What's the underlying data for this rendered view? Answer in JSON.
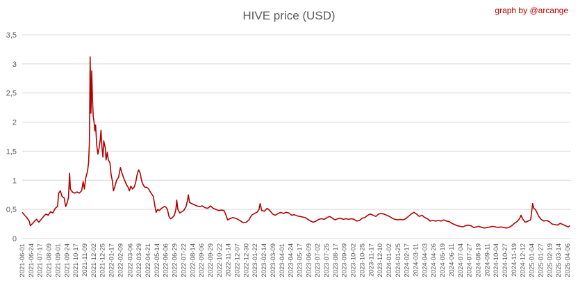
{
  "chart_data": {
    "type": "line",
    "title": "HIVE price (USD)",
    "credit": "graph by @arcange",
    "credit_color": "#c00000",
    "line_color": "#b00000",
    "xlabel": "",
    "ylabel": "",
    "grid": true,
    "legend": "none",
    "ylim": [
      0,
      3.5
    ],
    "yticks": [
      0,
      0.5,
      1,
      1.5,
      2,
      2.5,
      3,
      3.5
    ],
    "ytick_labels": [
      "0",
      "0,5",
      "1",
      "1,5",
      "2",
      "2,5",
      "3",
      "3,5"
    ],
    "xlim": [
      "2021-06-01",
      "2025-04-15"
    ],
    "xtick_labels": [
      "2021-06-01",
      "2021-06-24",
      "2021-07-17",
      "2021-08-09",
      "2021-09-01",
      "2021-09-24",
      "2021-10-17",
      "2021-11-09",
      "2021-12-02",
      "2021-12-25",
      "2022-01-17",
      "2022-02-09",
      "2022-03-06",
      "2022-03-29",
      "2022-04-21",
      "2022-05-14",
      "2022-06-06",
      "2022-06-29",
      "2022-07-22",
      "2022-08-14",
      "2022-09-06",
      "2022-09-29",
      "2022-10-22",
      "2022-11-14",
      "2022-12-07",
      "2022-12-30",
      "2023-01-22",
      "2023-02-14",
      "2023-03-09",
      "2023-04-01",
      "2023-04-24",
      "2023-05-17",
      "2023-06-09",
      "2023-07-02",
      "2023-07-25",
      "2023-08-17",
      "2023-09-09",
      "2023-10-02",
      "2023-10-25",
      "2023-11-17",
      "2023-12-10",
      "2024-01-02",
      "2024-01-25",
      "2024-02-17",
      "2024-03-11",
      "2024-04-03",
      "2024-04-26",
      "2024-05-19",
      "2024-06-11",
      "2024-07-04",
      "2024-07-27",
      "2024-08-19",
      "2024-09-11",
      "2024-10-04",
      "2024-10-27",
      "2024-11-19",
      "2024-12-12",
      "2025-01-04",
      "2025-01-27",
      "2025-02-19",
      "2025-03-14",
      "2025-04-06"
    ],
    "series": [
      {
        "points": [
          [
            "2021-06-01",
            0.45
          ],
          [
            "2021-06-07",
            0.4
          ],
          [
            "2021-06-13",
            0.36
          ],
          [
            "2021-06-19",
            0.3
          ],
          [
            "2021-06-22",
            0.22
          ],
          [
            "2021-06-28",
            0.26
          ],
          [
            "2021-07-03",
            0.3
          ],
          [
            "2021-07-08",
            0.33
          ],
          [
            "2021-07-14",
            0.28
          ],
          [
            "2021-07-20",
            0.33
          ],
          [
            "2021-07-26",
            0.38
          ],
          [
            "2021-08-01",
            0.42
          ],
          [
            "2021-08-07",
            0.4
          ],
          [
            "2021-08-13",
            0.46
          ],
          [
            "2021-08-19",
            0.44
          ],
          [
            "2021-08-25",
            0.52
          ],
          [
            "2021-08-31",
            0.55
          ],
          [
            "2021-09-03",
            0.78
          ],
          [
            "2021-09-07",
            0.82
          ],
          [
            "2021-09-12",
            0.72
          ],
          [
            "2021-09-17",
            0.7
          ],
          [
            "2021-09-21",
            0.55
          ],
          [
            "2021-09-25",
            0.62
          ],
          [
            "2021-09-28",
            0.7
          ],
          [
            "2021-10-01",
            1.12
          ],
          [
            "2021-10-03",
            0.85
          ],
          [
            "2021-10-08",
            0.8
          ],
          [
            "2021-10-14",
            0.78
          ],
          [
            "2021-10-20",
            0.8
          ],
          [
            "2021-10-26",
            0.78
          ],
          [
            "2021-11-01",
            0.82
          ],
          [
            "2021-11-05",
            0.98
          ],
          [
            "2021-11-08",
            0.85
          ],
          [
            "2021-11-12",
            1.05
          ],
          [
            "2021-11-16",
            1.15
          ],
          [
            "2021-11-19",
            1.3
          ],
          [
            "2021-11-21",
            1.65
          ],
          [
            "2021-11-22",
            2.3
          ],
          [
            "2021-11-23",
            3.12
          ],
          [
            "2021-11-24",
            2.6
          ],
          [
            "2021-11-25",
            2.15
          ],
          [
            "2021-11-26",
            2.4
          ],
          [
            "2021-11-27",
            2.88
          ],
          [
            "2021-11-29",
            2.4
          ],
          [
            "2021-12-01",
            2.1
          ],
          [
            "2021-12-03",
            2.0
          ],
          [
            "2021-12-05",
            1.85
          ],
          [
            "2021-12-07",
            1.95
          ],
          [
            "2021-12-10",
            1.6
          ],
          [
            "2021-12-13",
            1.45
          ],
          [
            "2021-12-16",
            1.55
          ],
          [
            "2021-12-19",
            1.7
          ],
          [
            "2021-12-21",
            1.86
          ],
          [
            "2021-12-23",
            1.6
          ],
          [
            "2021-12-26",
            1.4
          ],
          [
            "2021-12-28",
            1.68
          ],
          [
            "2022-01-01",
            1.55
          ],
          [
            "2022-01-03",
            1.35
          ],
          [
            "2022-01-06",
            1.48
          ],
          [
            "2022-01-09",
            1.35
          ],
          [
            "2022-01-13",
            1.3
          ],
          [
            "2022-01-16",
            1.1
          ],
          [
            "2022-01-19",
            1.0
          ],
          [
            "2022-01-22",
            0.82
          ],
          [
            "2022-01-26",
            0.9
          ],
          [
            "2022-01-30",
            1.0
          ],
          [
            "2022-02-04",
            1.05
          ],
          [
            "2022-02-09",
            1.22
          ],
          [
            "2022-02-13",
            1.12
          ],
          [
            "2022-02-17",
            1.05
          ],
          [
            "2022-02-21",
            0.98
          ],
          [
            "2022-02-25",
            0.92
          ],
          [
            "2022-03-01",
            0.88
          ],
          [
            "2022-03-04",
            0.82
          ],
          [
            "2022-03-08",
            0.9
          ],
          [
            "2022-03-12",
            0.85
          ],
          [
            "2022-03-16",
            0.88
          ],
          [
            "2022-03-20",
            0.95
          ],
          [
            "2022-03-24",
            1.1
          ],
          [
            "2022-03-28",
            1.18
          ],
          [
            "2022-04-01",
            1.12
          ],
          [
            "2022-04-05",
            0.98
          ],
          [
            "2022-04-09",
            0.92
          ],
          [
            "2022-04-13",
            0.88
          ],
          [
            "2022-04-17",
            0.88
          ],
          [
            "2022-04-22",
            0.86
          ],
          [
            "2022-04-27",
            0.8
          ],
          [
            "2022-05-01",
            0.76
          ],
          [
            "2022-05-05",
            0.72
          ],
          [
            "2022-05-09",
            0.55
          ],
          [
            "2022-05-12",
            0.45
          ],
          [
            "2022-05-16",
            0.5
          ],
          [
            "2022-05-20",
            0.48
          ],
          [
            "2022-05-26",
            0.52
          ],
          [
            "2022-06-02",
            0.55
          ],
          [
            "2022-06-06",
            0.54
          ],
          [
            "2022-06-10",
            0.5
          ],
          [
            "2022-06-14",
            0.38
          ],
          [
            "2022-06-18",
            0.34
          ],
          [
            "2022-06-23",
            0.36
          ],
          [
            "2022-06-28",
            0.4
          ],
          [
            "2022-07-02",
            0.5
          ],
          [
            "2022-07-04",
            0.66
          ],
          [
            "2022-07-07",
            0.5
          ],
          [
            "2022-07-12",
            0.44
          ],
          [
            "2022-07-17",
            0.46
          ],
          [
            "2022-07-22",
            0.48
          ],
          [
            "2022-07-28",
            0.55
          ],
          [
            "2022-08-01",
            0.66
          ],
          [
            "2022-08-03",
            0.75
          ],
          [
            "2022-08-06",
            0.62
          ],
          [
            "2022-08-12",
            0.6
          ],
          [
            "2022-08-18",
            0.58
          ],
          [
            "2022-08-25",
            0.56
          ],
          [
            "2022-09-01",
            0.55
          ],
          [
            "2022-09-08",
            0.56
          ],
          [
            "2022-09-15",
            0.53
          ],
          [
            "2022-09-22",
            0.52
          ],
          [
            "2022-09-29",
            0.56
          ],
          [
            "2022-10-06",
            0.52
          ],
          [
            "2022-10-13",
            0.5
          ],
          [
            "2022-10-20",
            0.48
          ],
          [
            "2022-10-27",
            0.49
          ],
          [
            "2022-11-03",
            0.48
          ],
          [
            "2022-11-08",
            0.4
          ],
          [
            "2022-11-12",
            0.32
          ],
          [
            "2022-11-18",
            0.34
          ],
          [
            "2022-11-25",
            0.36
          ],
          [
            "2022-12-02",
            0.35
          ],
          [
            "2022-12-09",
            0.33
          ],
          [
            "2022-12-16",
            0.3
          ],
          [
            "2022-12-23",
            0.27
          ],
          [
            "2022-12-30",
            0.28
          ],
          [
            "2023-01-06",
            0.32
          ],
          [
            "2023-01-13",
            0.4
          ],
          [
            "2023-01-20",
            0.43
          ],
          [
            "2023-01-27",
            0.45
          ],
          [
            "2023-02-01",
            0.5
          ],
          [
            "2023-02-04",
            0.6
          ],
          [
            "2023-02-08",
            0.48
          ],
          [
            "2023-02-15",
            0.47
          ],
          [
            "2023-02-22",
            0.52
          ],
          [
            "2023-03-01",
            0.48
          ],
          [
            "2023-03-08",
            0.42
          ],
          [
            "2023-03-15",
            0.4
          ],
          [
            "2023-03-22",
            0.43
          ],
          [
            "2023-03-29",
            0.45
          ],
          [
            "2023-04-05",
            0.43
          ],
          [
            "2023-04-12",
            0.45
          ],
          [
            "2023-04-19",
            0.44
          ],
          [
            "2023-04-26",
            0.4
          ],
          [
            "2023-05-03",
            0.41
          ],
          [
            "2023-05-10",
            0.39
          ],
          [
            "2023-05-17",
            0.38
          ],
          [
            "2023-05-24",
            0.37
          ],
          [
            "2023-05-31",
            0.36
          ],
          [
            "2023-06-07",
            0.33
          ],
          [
            "2023-06-14",
            0.3
          ],
          [
            "2023-06-21",
            0.28
          ],
          [
            "2023-06-28",
            0.3
          ],
          [
            "2023-07-05",
            0.33
          ],
          [
            "2023-07-12",
            0.34
          ],
          [
            "2023-07-19",
            0.33
          ],
          [
            "2023-07-26",
            0.36
          ],
          [
            "2023-08-02",
            0.38
          ],
          [
            "2023-08-09",
            0.35
          ],
          [
            "2023-08-16",
            0.32
          ],
          [
            "2023-08-23",
            0.34
          ],
          [
            "2023-08-30",
            0.35
          ],
          [
            "2023-09-06",
            0.33
          ],
          [
            "2023-09-13",
            0.34
          ],
          [
            "2023-09-20",
            0.33
          ],
          [
            "2023-09-27",
            0.34
          ],
          [
            "2023-10-04",
            0.33
          ],
          [
            "2023-10-11",
            0.3
          ],
          [
            "2023-10-18",
            0.31
          ],
          [
            "2023-10-25",
            0.35
          ],
          [
            "2023-11-01",
            0.36
          ],
          [
            "2023-11-08",
            0.4
          ],
          [
            "2023-11-15",
            0.42
          ],
          [
            "2023-11-22",
            0.4
          ],
          [
            "2023-11-29",
            0.38
          ],
          [
            "2023-12-06",
            0.42
          ],
          [
            "2023-12-13",
            0.43
          ],
          [
            "2023-12-20",
            0.42
          ],
          [
            "2023-12-27",
            0.4
          ],
          [
            "2024-01-03",
            0.38
          ],
          [
            "2024-01-10",
            0.35
          ],
          [
            "2024-01-17",
            0.33
          ],
          [
            "2024-01-24",
            0.32
          ],
          [
            "2024-01-31",
            0.33
          ],
          [
            "2024-02-07",
            0.32
          ],
          [
            "2024-02-14",
            0.34
          ],
          [
            "2024-02-21",
            0.38
          ],
          [
            "2024-02-28",
            0.42
          ],
          [
            "2024-03-06",
            0.45
          ],
          [
            "2024-03-13",
            0.42
          ],
          [
            "2024-03-20",
            0.38
          ],
          [
            "2024-03-27",
            0.4
          ],
          [
            "2024-04-03",
            0.36
          ],
          [
            "2024-04-10",
            0.34
          ],
          [
            "2024-04-17",
            0.3
          ],
          [
            "2024-04-24",
            0.31
          ],
          [
            "2024-05-01",
            0.3
          ],
          [
            "2024-05-08",
            0.31
          ],
          [
            "2024-05-15",
            0.3
          ],
          [
            "2024-05-22",
            0.32
          ],
          [
            "2024-05-29",
            0.3
          ],
          [
            "2024-06-05",
            0.29
          ],
          [
            "2024-06-12",
            0.26
          ],
          [
            "2024-06-19",
            0.24
          ],
          [
            "2024-06-26",
            0.22
          ],
          [
            "2024-07-03",
            0.21
          ],
          [
            "2024-07-10",
            0.2
          ],
          [
            "2024-07-17",
            0.22
          ],
          [
            "2024-07-24",
            0.23
          ],
          [
            "2024-07-31",
            0.22
          ],
          [
            "2024-08-07",
            0.19
          ],
          [
            "2024-08-14",
            0.2
          ],
          [
            "2024-08-21",
            0.21
          ],
          [
            "2024-08-28",
            0.19
          ],
          [
            "2024-09-04",
            0.18
          ],
          [
            "2024-09-11",
            0.19
          ],
          [
            "2024-09-18",
            0.2
          ],
          [
            "2024-09-25",
            0.21
          ],
          [
            "2024-10-02",
            0.2
          ],
          [
            "2024-10-09",
            0.19
          ],
          [
            "2024-10-16",
            0.2
          ],
          [
            "2024-10-23",
            0.19
          ],
          [
            "2024-10-30",
            0.18
          ],
          [
            "2024-11-06",
            0.19
          ],
          [
            "2024-11-13",
            0.22
          ],
          [
            "2024-11-20",
            0.26
          ],
          [
            "2024-11-27",
            0.29
          ],
          [
            "2024-12-04",
            0.35
          ],
          [
            "2024-12-07",
            0.4
          ],
          [
            "2024-12-11",
            0.34
          ],
          [
            "2024-12-18",
            0.28
          ],
          [
            "2024-12-25",
            0.3
          ],
          [
            "2025-01-01",
            0.32
          ],
          [
            "2025-01-06",
            0.6
          ],
          [
            "2025-01-09",
            0.52
          ],
          [
            "2025-01-13",
            0.5
          ],
          [
            "2025-01-17",
            0.45
          ],
          [
            "2025-01-22",
            0.38
          ],
          [
            "2025-01-28",
            0.33
          ],
          [
            "2025-02-04",
            0.3
          ],
          [
            "2025-02-11",
            0.31
          ],
          [
            "2025-02-18",
            0.29
          ],
          [
            "2025-02-25",
            0.25
          ],
          [
            "2025-03-04",
            0.24
          ],
          [
            "2025-03-11",
            0.23
          ],
          [
            "2025-03-18",
            0.26
          ],
          [
            "2025-03-25",
            0.24
          ],
          [
            "2025-04-01",
            0.22
          ],
          [
            "2025-04-07",
            0.2
          ],
          [
            "2025-04-12",
            0.22
          ]
        ]
      }
    ]
  }
}
